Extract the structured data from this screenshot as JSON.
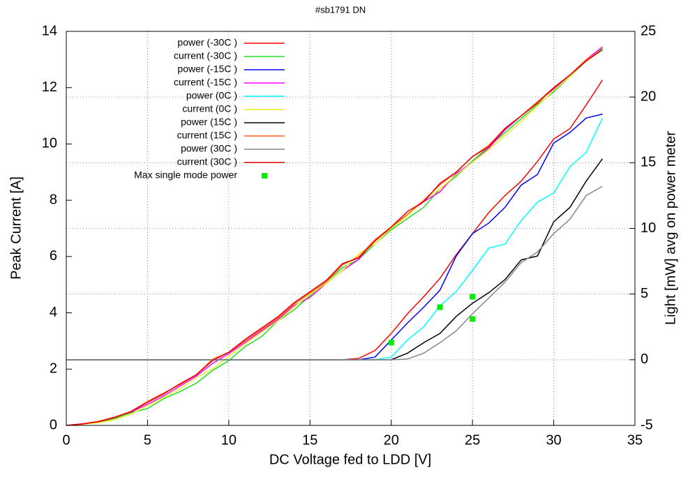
{
  "chart_data": {
    "type": "line",
    "title": "#sb1791 DN",
    "x_label": "DC Voltage fed to LDD [V]",
    "y_label": "Peak Current [A]",
    "y2_label": "Light [mW] avg on power meter",
    "xlim": [
      0,
      35
    ],
    "xticks": [
      0,
      5,
      10,
      15,
      20,
      25,
      30,
      35
    ],
    "ylim": [
      0,
      14
    ],
    "yticks": [
      0,
      2,
      4,
      6,
      8,
      10,
      12,
      14
    ],
    "y2lim": [
      -5,
      25
    ],
    "y2ticks": [
      -5,
      0,
      5,
      10,
      15,
      20,
      25
    ],
    "grid": true,
    "legend": "top-left",
    "x": [
      0,
      1,
      2,
      3,
      4,
      5,
      6,
      7,
      8,
      9,
      10,
      11,
      12,
      13,
      14,
      15,
      16,
      17,
      18,
      19,
      20,
      21,
      22,
      23,
      24,
      25,
      26,
      27,
      28,
      29,
      30,
      31,
      32,
      33
    ],
    "series": [
      {
        "name": "power (-30C )",
        "color": "#ff0000",
        "axis": "y2",
        "values": [
          0,
          0,
          0,
          0,
          0,
          0,
          0,
          0,
          0,
          0,
          0,
          0,
          0,
          0,
          0,
          0,
          0,
          0,
          0.1,
          0.7,
          2.0,
          3.5,
          4.8,
          6.2,
          8.0,
          9.6,
          11.2,
          12.5,
          13.6,
          15.1,
          16.8,
          17.6,
          19.4,
          21.3
        ]
      },
      {
        "name": "current (-30C )",
        "color": "#22dd22",
        "axis": "y",
        "values": [
          0,
          0.05,
          0.12,
          0.25,
          0.45,
          0.6,
          0.95,
          1.2,
          1.5,
          1.95,
          2.3,
          2.8,
          3.15,
          3.7,
          4.1,
          4.6,
          5.1,
          5.6,
          5.9,
          6.45,
          6.95,
          7.35,
          7.75,
          8.4,
          8.85,
          9.4,
          9.9,
          10.4,
          10.9,
          11.4,
          11.85,
          12.4,
          12.95,
          13.4
        ]
      },
      {
        "name": "power (-15C )",
        "color": "#0000ff",
        "axis": "y2",
        "values": [
          0,
          0,
          0,
          0,
          0,
          0,
          0,
          0,
          0,
          0,
          0,
          0,
          0,
          0,
          0,
          0,
          0,
          0,
          0,
          0.2,
          1.5,
          2.8,
          4.0,
          5.3,
          7.9,
          9.6,
          10.4,
          11.6,
          13.3,
          14.1,
          16.5,
          17.3,
          18.4,
          18.7
        ]
      },
      {
        "name": "current (-15C )",
        "color": "#ff00ff",
        "axis": "y",
        "values": [
          0,
          0.06,
          0.14,
          0.3,
          0.48,
          0.75,
          1.05,
          1.4,
          1.75,
          2.2,
          2.55,
          2.95,
          3.35,
          3.75,
          4.25,
          4.55,
          5.05,
          5.5,
          5.9,
          6.6,
          7.0,
          7.5,
          7.95,
          8.3,
          8.95,
          9.35,
          9.85,
          10.5,
          11.0,
          11.5,
          11.95,
          12.45,
          13.0,
          13.45
        ]
      },
      {
        "name": "power (0C )",
        "color": "#00ffff",
        "axis": "y2",
        "values": [
          0,
          0,
          0,
          0,
          0,
          0,
          0,
          0,
          0,
          0,
          0,
          0,
          0,
          0,
          0,
          0,
          0,
          0,
          0,
          0,
          0.2,
          1.5,
          2.5,
          4.1,
          5.2,
          6.8,
          8.5,
          8.8,
          10.6,
          12.0,
          12.7,
          14.7,
          15.8,
          18.4
        ]
      },
      {
        "name": "current (0C )",
        "color": "#eeee22",
        "axis": "y",
        "values": [
          0,
          0.04,
          0.1,
          0.2,
          0.4,
          0.7,
          1.0,
          1.3,
          1.7,
          2.0,
          2.45,
          2.9,
          3.3,
          3.7,
          4.2,
          4.65,
          5.05,
          5.5,
          6.1,
          6.45,
          7.0,
          7.45,
          8.0,
          8.4,
          8.9,
          9.35,
          9.8,
          10.3,
          10.8,
          11.35,
          11.9,
          12.4,
          13.0,
          13.35
        ]
      },
      {
        "name": "power (15C )",
        "color": "#000000",
        "axis": "y2",
        "values": [
          0,
          0,
          0,
          0,
          0,
          0,
          0,
          0,
          0,
          0,
          0,
          0,
          0,
          0,
          0,
          0,
          0,
          0,
          0,
          0,
          0,
          0.5,
          1.3,
          2.0,
          3.3,
          4.3,
          5.1,
          6.1,
          7.6,
          7.9,
          10.5,
          11.6,
          13.6,
          15.3
        ]
      },
      {
        "name": "current (15C )",
        "color": "#ff6020",
        "axis": "y",
        "values": [
          0,
          0.05,
          0.15,
          0.3,
          0.5,
          0.85,
          1.15,
          1.45,
          1.8,
          2.35,
          2.6,
          3.0,
          3.4,
          3.8,
          4.3,
          4.7,
          5.1,
          5.7,
          6.0,
          6.6,
          7.05,
          7.5,
          8.0,
          8.55,
          9.0,
          9.55,
          9.95,
          10.55,
          11.0,
          11.5,
          12.0,
          12.45,
          13.0,
          13.35
        ]
      },
      {
        "name": "power (30C )",
        "color": "#888888",
        "axis": "y2",
        "values": [
          0,
          0,
          0,
          0,
          0,
          0,
          0,
          0,
          0,
          0,
          0,
          0,
          0,
          0,
          0,
          0,
          0,
          0,
          0,
          0,
          0,
          0.05,
          0.5,
          1.3,
          2.2,
          3.5,
          4.7,
          5.9,
          7.4,
          8.2,
          9.6,
          10.7,
          12.5,
          13.2
        ]
      },
      {
        "name": "current (30C )",
        "color": "#e00000",
        "axis": "y",
        "values": [
          0,
          0.05,
          0.13,
          0.28,
          0.5,
          0.82,
          1.12,
          1.48,
          1.8,
          2.3,
          2.6,
          3.05,
          3.45,
          3.85,
          4.35,
          4.75,
          5.15,
          5.75,
          5.95,
          6.55,
          7.05,
          7.6,
          7.95,
          8.6,
          9.0,
          9.55,
          9.9,
          10.55,
          11.0,
          11.45,
          12.0,
          12.45,
          12.95,
          13.35
        ]
      },
      {
        "name": "Max single mode power",
        "color": "#00ee00",
        "axis": "y2",
        "marker": "square",
        "x": [
          20,
          23,
          25,
          25
        ],
        "values": [
          1.3,
          4.0,
          4.8,
          3.1
        ]
      }
    ]
  }
}
